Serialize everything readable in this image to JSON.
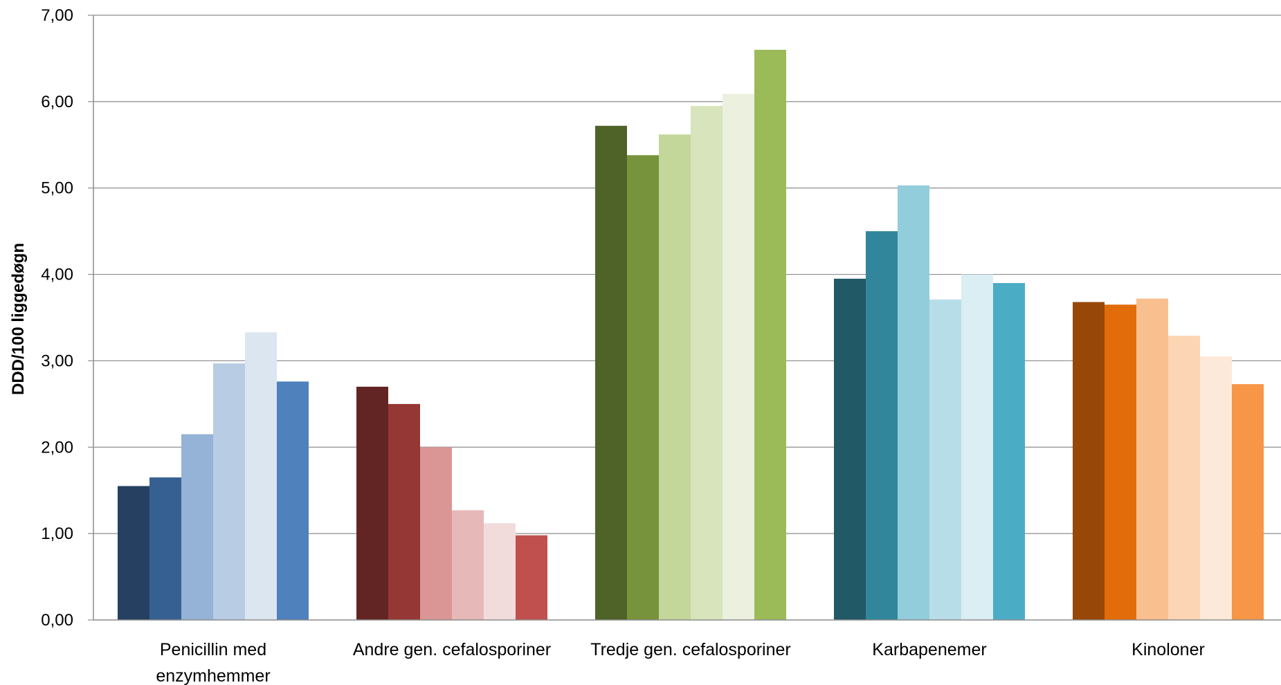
{
  "chart_data": {
    "type": "bar",
    "ylabel": "DDD/100 liggedøgn",
    "ylim": [
      0,
      7
    ],
    "yticks": [
      "0,00",
      "1,00",
      "2,00",
      "3,00",
      "4,00",
      "5,00",
      "6,00",
      "7,00"
    ],
    "grid": true,
    "categories": [
      {
        "label_lines": [
          "Penicillin med",
          "enzymhemmer"
        ]
      },
      {
        "label_lines": [
          "Andre gen. cefalosporiner"
        ]
      },
      {
        "label_lines": [
          "Tredje gen. cefalosporiner"
        ]
      },
      {
        "label_lines": [
          "Karbapenemer"
        ]
      },
      {
        "label_lines": [
          "Kinoloner"
        ]
      }
    ],
    "values": [
      [
        1.55,
        1.65,
        2.15,
        2.97,
        3.33,
        2.76
      ],
      [
        2.7,
        2.5,
        2.0,
        1.27,
        1.12,
        0.98
      ],
      [
        5.72,
        5.38,
        5.62,
        5.95,
        6.09,
        6.6
      ],
      [
        3.95,
        4.5,
        5.03,
        3.71,
        4.0,
        3.9
      ],
      [
        3.68,
        3.65,
        3.72,
        3.29,
        3.05,
        2.73
      ]
    ],
    "colors": [
      [
        "#254061",
        "#366092",
        "#95b3d7",
        "#b8cce4",
        "#dce6f1",
        "#4f81bd"
      ],
      [
        "#632523",
        "#953735",
        "#da9694",
        "#e6b8b7",
        "#f2dcdb",
        "#c0504d"
      ],
      [
        "#4f6228",
        "#77933c",
        "#c4d79b",
        "#d8e4bc",
        "#ebf1de",
        "#9bbb59"
      ],
      [
        "#215967",
        "#31869b",
        "#92cddc",
        "#b7dee8",
        "#daeef3",
        "#4bacc6"
      ],
      [
        "#974706",
        "#e26b0a",
        "#fabf8f",
        "#fcd5b4",
        "#fde9d9",
        "#f79646"
      ]
    ]
  }
}
